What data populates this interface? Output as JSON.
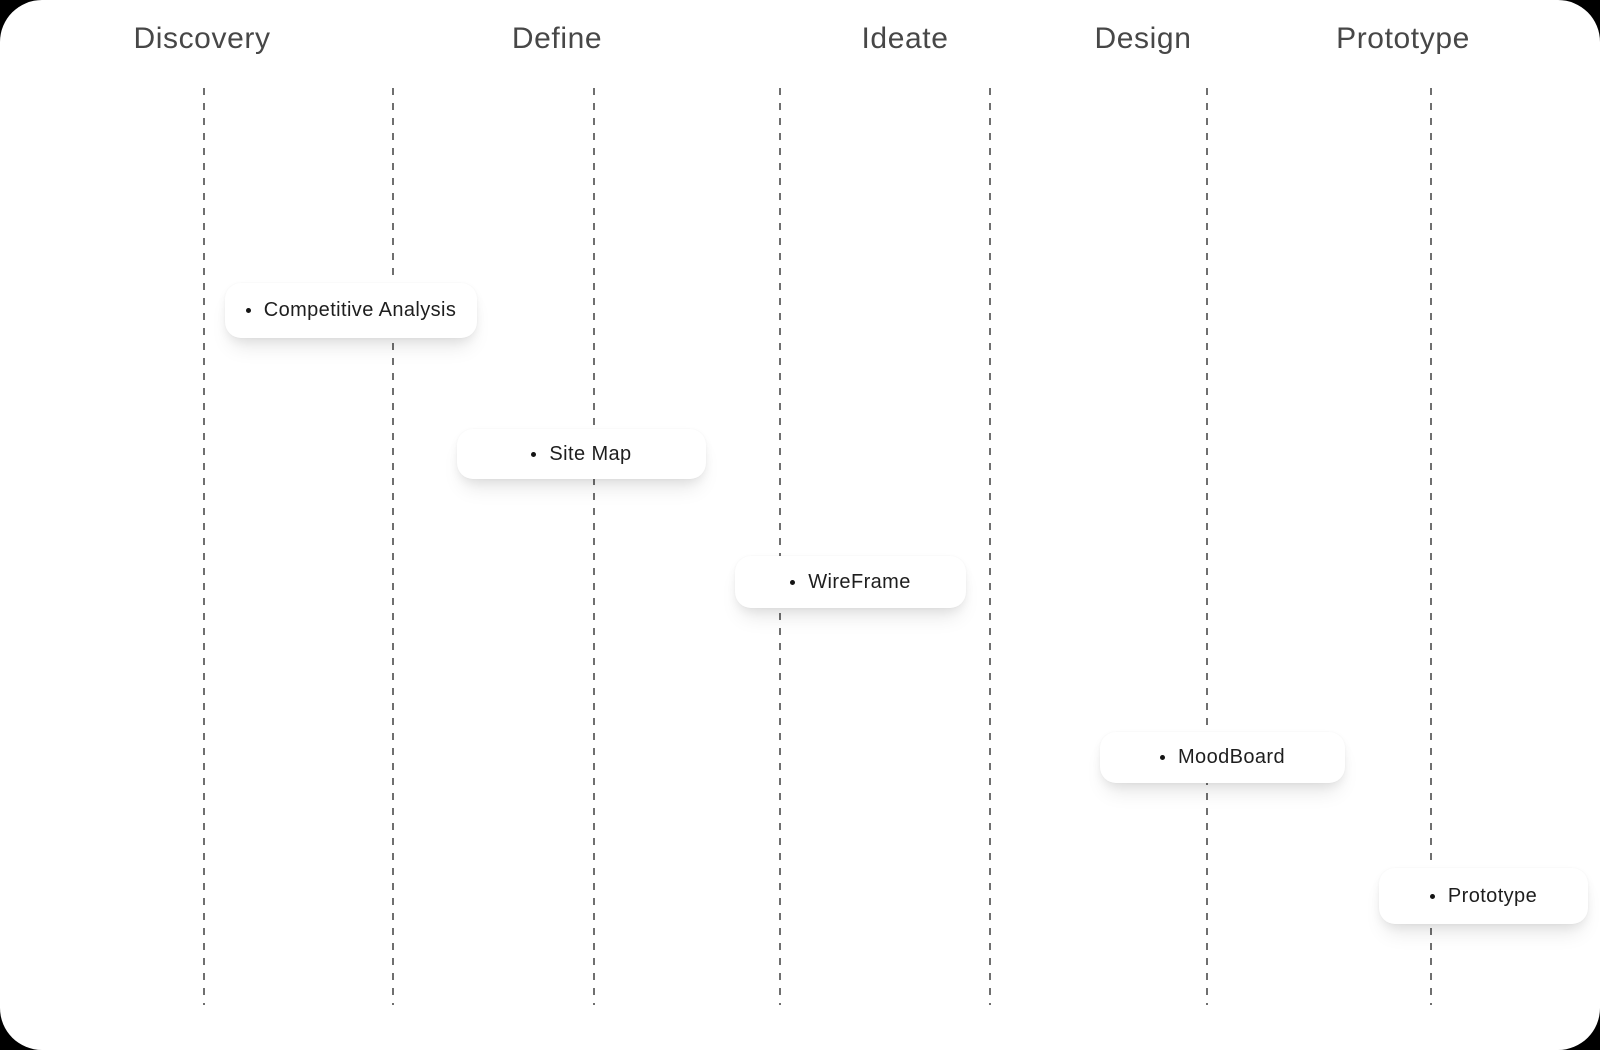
{
  "board": {
    "type": "design-process-board"
  },
  "columns": [
    {
      "label": "Discovery"
    },
    {
      "label": "Define"
    },
    {
      "label": "Ideate"
    },
    {
      "label": "Design"
    },
    {
      "label": "Prototype"
    }
  ],
  "cards": [
    {
      "label": "Competitive Analysis",
      "column": "Discovery"
    },
    {
      "label": "Site Map",
      "column": "Define"
    },
    {
      "label": "WireFrame",
      "column": "Ideate"
    },
    {
      "label": "MoodBoard",
      "column": "Design"
    },
    {
      "label": "Prototype",
      "column": "Prototype"
    }
  ],
  "icons": {
    "bullet": "dot"
  },
  "colors": {
    "page_background": "#000000",
    "canvas_surface": "#ffffff",
    "header_text": "#474747",
    "card_text": "#1e1e1e",
    "guide_dash": "#6f6f6f",
    "bullet_dot": "#141414"
  }
}
